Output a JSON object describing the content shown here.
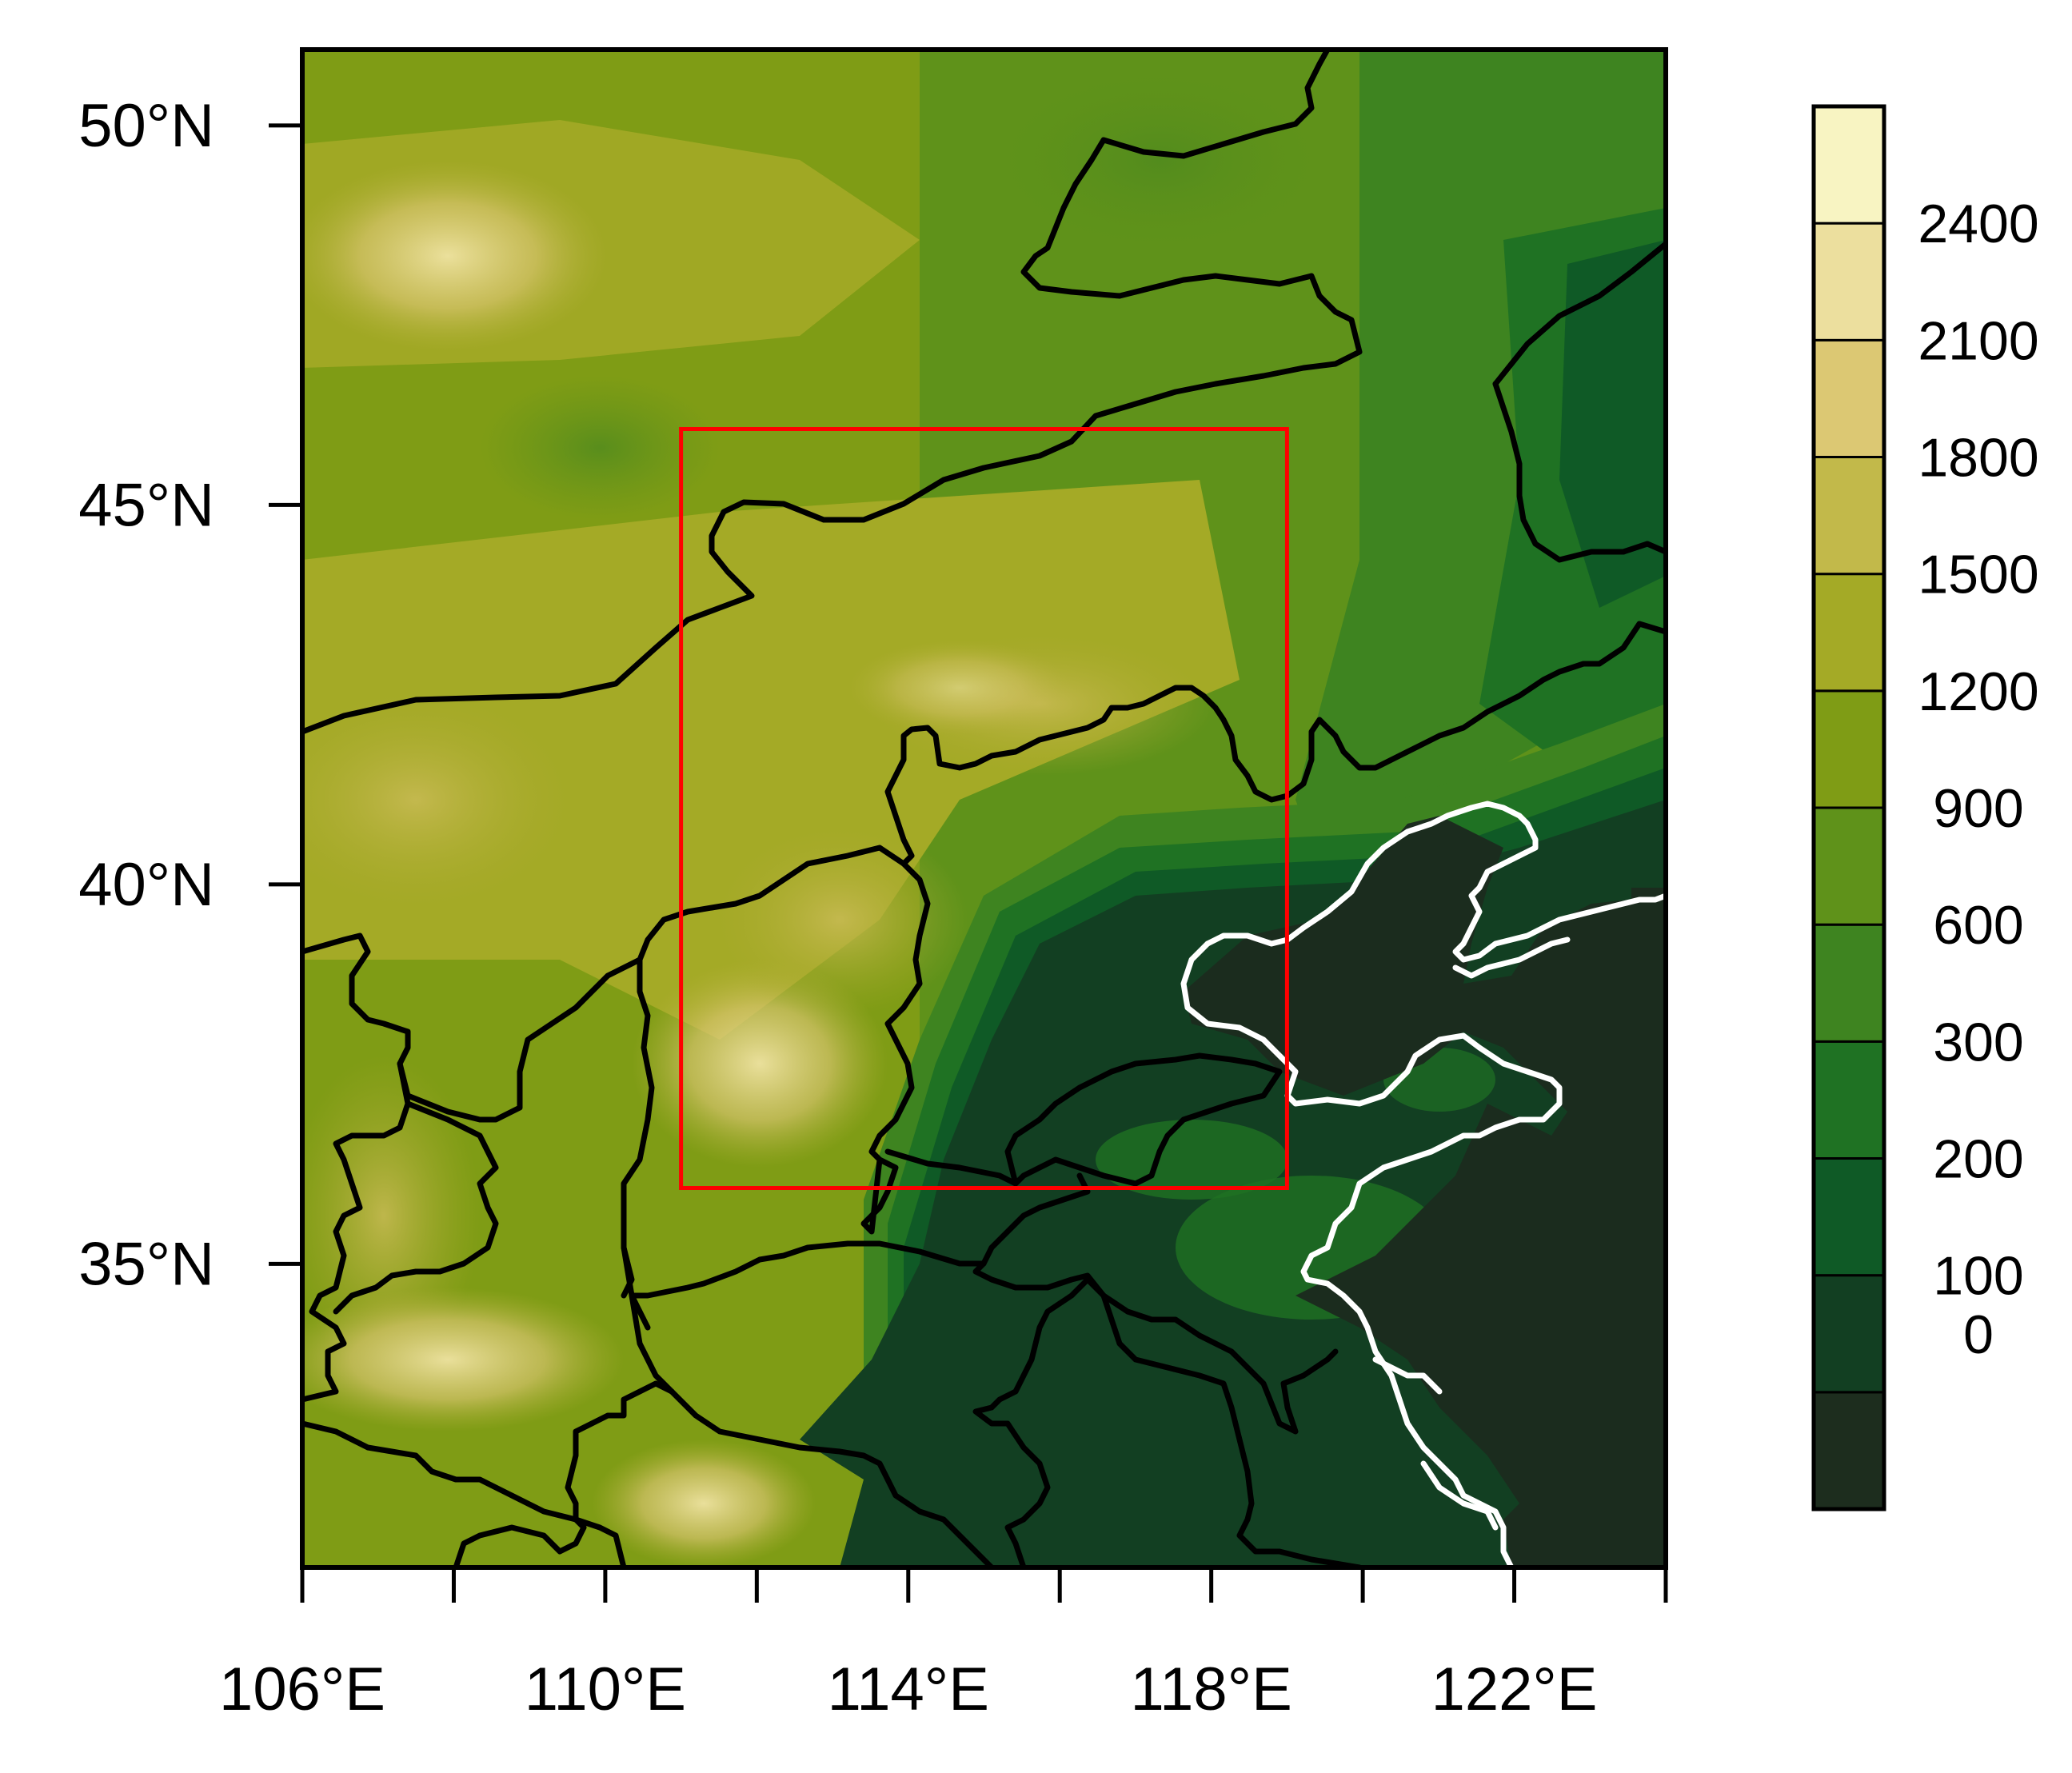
{
  "map": {
    "lat_labels": [
      "50°N",
      "45°N",
      "40°N",
      "35°N"
    ],
    "lon_labels": [
      "106°E",
      "110°E",
      "114°E",
      "118°E",
      "122°E"
    ],
    "lat_ticks": [
      50,
      45,
      40,
      35
    ],
    "lon_major_ticks": [
      106,
      110,
      114,
      118,
      122
    ],
    "lon_minor_ticks": [
      108,
      112,
      116,
      120,
      124
    ],
    "extent": {
      "lon_min": 106,
      "lon_max": 124,
      "lat_min": 31,
      "lat_max": 51
    },
    "study_area": {
      "lon_min": 111,
      "lon_max": 119,
      "lat_min": 36,
      "lat_max": 46,
      "color": "#ff0000"
    },
    "colorbar": {
      "labels": [
        "2400",
        "2100",
        "1800",
        "1500",
        "1200",
        "900",
        "600",
        "300",
        "200",
        "100",
        "0"
      ],
      "colors_bottom_to_top": [
        "#1d2d1e",
        "#123f22",
        "#0f5a26",
        "#1f7223",
        "#3e8420",
        "#5f921a",
        "#7f9c15",
        "#a4aa26",
        "#c2b94a",
        "#dcc873",
        "#ecdf9e",
        "#f8f4c2"
      ]
    },
    "colors": {
      "border": "#000000",
      "coastline": "#ffffff",
      "sea": "#1b2c1e"
    }
  }
}
